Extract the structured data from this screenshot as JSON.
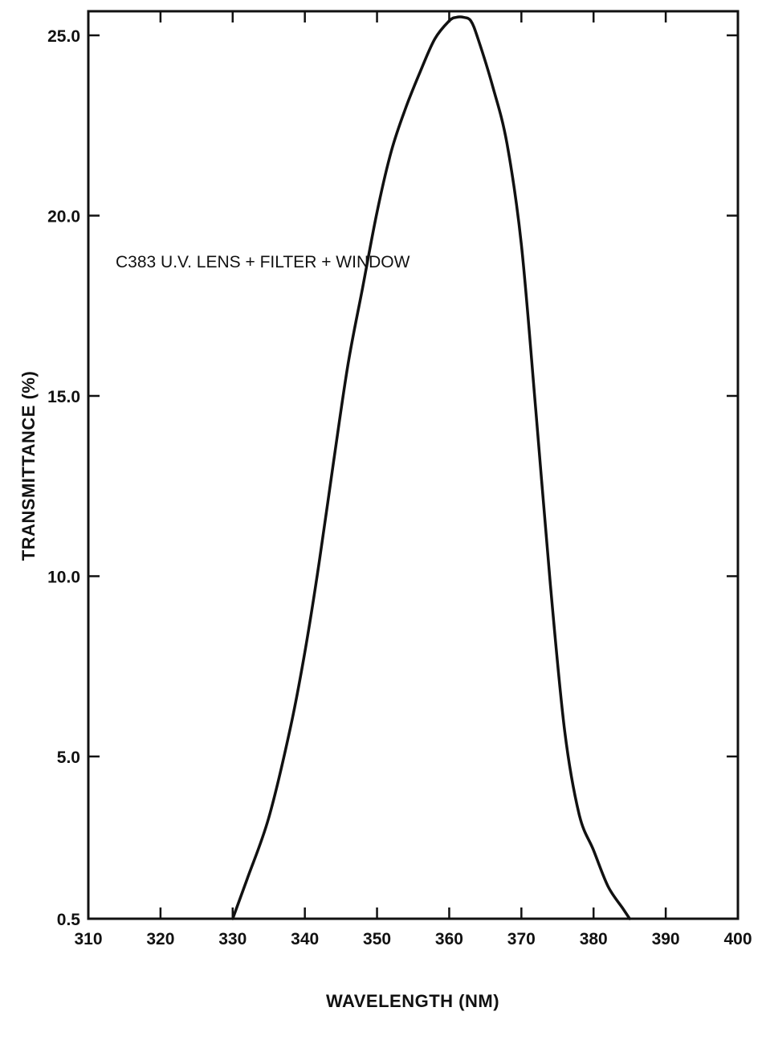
{
  "chart_data": {
    "type": "line",
    "title": "",
    "xlabel": "WAVELENGTH  (NM)",
    "ylabel": "TRANSMITTANCE  (%)",
    "annotation": "C383 U.V. LENS + FILTER + WINDOW",
    "xlim": [
      310,
      400
    ],
    "ylim": [
      0.5,
      25.0
    ],
    "x_ticks": [
      310,
      320,
      330,
      340,
      350,
      360,
      370,
      380,
      390,
      400
    ],
    "x_tick_labels": [
      "310",
      "320",
      "330",
      "340",
      "350",
      "360",
      "370",
      "380",
      "390",
      "400"
    ],
    "y_ticks": [
      0.5,
      5.0,
      10.0,
      15.0,
      20.0,
      25.0
    ],
    "y_tick_labels": [
      "0.5",
      "5.0",
      "10.0",
      "15.0",
      "20.0",
      "25.0"
    ],
    "grid": false,
    "series": [
      {
        "x": [
          330,
          332,
          335,
          338,
          340,
          342,
          344,
          346,
          348,
          350,
          352,
          354,
          356,
          358,
          360,
          361,
          362,
          363,
          364,
          366,
          368,
          370,
          372,
          374,
          376,
          378,
          380,
          382,
          384,
          385
        ],
        "y": [
          0.5,
          1.6,
          3.3,
          5.8,
          7.9,
          10.4,
          13.2,
          15.9,
          18.0,
          20.1,
          21.8,
          23.0,
          24.0,
          24.9,
          25.4,
          25.5,
          25.5,
          25.4,
          24.9,
          23.6,
          22.0,
          19.2,
          14.6,
          9.8,
          5.7,
          3.4,
          2.4,
          1.4,
          0.8,
          0.5
        ]
      }
    ]
  }
}
